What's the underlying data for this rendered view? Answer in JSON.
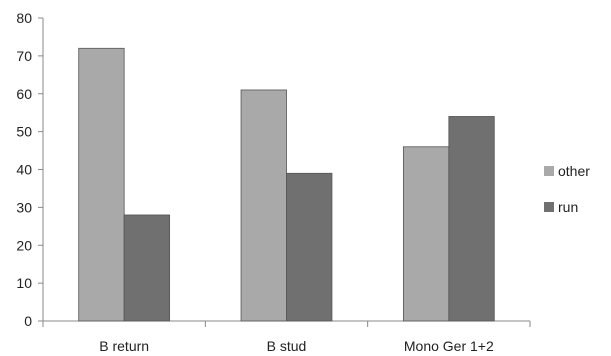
{
  "chart_data": {
    "type": "bar",
    "categories": [
      "B return",
      "B stud",
      "Mono Ger 1+2"
    ],
    "series": [
      {
        "name": "other",
        "values": [
          72,
          61,
          46
        ],
        "color": "#a9a9a9"
      },
      {
        "name": "run",
        "values": [
          28,
          39,
          54
        ],
        "color": "#707070"
      }
    ],
    "ylim": [
      0,
      80
    ],
    "yticks": [
      0,
      10,
      20,
      30,
      40,
      50,
      60,
      70,
      80
    ],
    "title": "",
    "xlabel": "",
    "ylabel": "",
    "legend_position": "right",
    "grid": false,
    "axis_color": "#888888",
    "bar_edge_color": "#555555"
  }
}
